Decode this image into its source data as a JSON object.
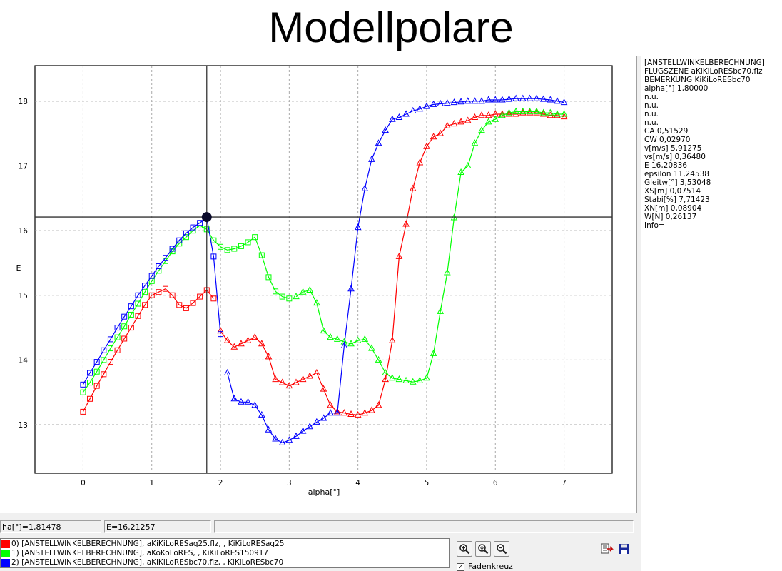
{
  "title": "Modellpolare",
  "info_panel": {
    "lines": [
      "[ANSTELLWINKELBERECHNUNG]",
      "FLUGSZENE aKiKiLoRESbc70.flz",
      "BEMERKUNG KiKiLoRESbc70",
      "alpha[°] 1,80000",
      "n.u.",
      "n.u.",
      "n.u.",
      "n.u.",
      "CA 0,51529",
      "CW 0,02970",
      "v[m/s] 5,91275",
      "vs[m/s] 0,36480",
      "E 16,20836",
      "epsilon 11,24538",
      "Gleitw[°] 3,53048",
      "XS[m] 0,07514",
      "Stabi[%] 7,71423",
      "XN[m] 0,08904",
      "W[N] 0,26137",
      "Info="
    ]
  },
  "status": {
    "alpha_readout": "ha[°]=1,81478",
    "e_readout": "E=16,21257"
  },
  "legend": [
    {
      "label": "0) [ANSTELLWINKELBERECHNUNG], aKiKiLoRESaq25.flz, , KiKiLoRESaq25",
      "color": "#ff0000"
    },
    {
      "label": "1) [ANSTELLWINKELBERECHNUNG], aKoKoLoRES, , KiKiLoRES150917",
      "color": "#00ff00"
    },
    {
      "label": "2) [ANSTELLWINKELBERECHNUNG], aKiKiLoRESbc70.flz, , KiKiLoRESbc70",
      "color": "#0000ff"
    }
  ],
  "toolbar": {
    "zoom_in_icon": "zoom-in-icon",
    "zoom_reset_icon": "zoom-reset-icon",
    "zoom_out_icon": "zoom-out-icon",
    "export_icon": "export-icon",
    "save_icon": "save-icon",
    "crosshair_checked": true,
    "crosshair_label": "Fadenkreuz"
  },
  "chart_data": {
    "type": "line",
    "xlabel": "alpha[°]",
    "ylabel": "E",
    "xlim": [
      -0.7,
      7.7
    ],
    "ylim": [
      12.25,
      18.55
    ],
    "xticks": [
      0,
      1,
      2,
      3,
      4,
      5,
      6,
      7
    ],
    "yticks": [
      13,
      14,
      15,
      16,
      17,
      18
    ],
    "grid": true,
    "crosshair": {
      "x": 1.8,
      "y": 16.21
    },
    "series": [
      {
        "name": "0) [ANSTELLWINKELBERECHNUNG], aKiKiLoRESaq25.flz, , KiKiLoRESaq25",
        "color": "#ff0000",
        "marker": "square",
        "x": [
          0,
          0.1,
          0.2,
          0.3,
          0.4,
          0.5,
          0.6,
          0.7,
          0.8,
          0.9,
          1.0,
          1.1,
          1.2,
          1.3,
          1.4,
          1.5,
          1.6,
          1.7,
          1.8,
          1.9
        ],
        "y": [
          13.2,
          13.4,
          13.6,
          13.78,
          13.97,
          14.15,
          14.33,
          14.5,
          14.68,
          14.85,
          15.0,
          15.05,
          15.1,
          15.0,
          14.85,
          14.8,
          14.88,
          14.98,
          15.08,
          14.95
        ]
      },
      {
        "name": "0) [ANSTELLWINKELBERECHNUNG], aKiKiLoRESaq25.flz, , KiKiLoRESaq25",
        "color": "#ff0000",
        "marker": "triangle",
        "x": [
          2.0,
          2.1,
          2.2,
          2.3,
          2.4,
          2.5,
          2.6,
          2.7,
          2.8,
          2.9,
          3.0,
          3.1,
          3.2,
          3.3,
          3.4,
          3.5,
          3.6,
          3.7,
          3.8,
          3.9,
          4.0,
          4.1,
          4.2,
          4.3,
          4.4,
          4.5,
          4.6,
          4.7,
          4.8,
          4.9,
          5.0,
          5.1,
          5.2,
          5.3,
          5.4,
          5.5,
          5.6,
          5.7,
          5.8,
          5.9,
          6.0,
          6.1,
          6.2,
          6.3,
          6.4,
          6.5,
          6.6,
          6.7,
          6.8,
          6.9,
          7.0
        ],
        "y": [
          14.45,
          14.3,
          14.2,
          14.25,
          14.3,
          14.35,
          14.25,
          14.05,
          13.7,
          13.65,
          13.6,
          13.65,
          13.7,
          13.75,
          13.8,
          13.55,
          13.3,
          13.2,
          13.18,
          13.16,
          13.15,
          13.18,
          13.22,
          13.3,
          13.7,
          14.3,
          15.6,
          16.1,
          16.65,
          17.05,
          17.3,
          17.45,
          17.5,
          17.62,
          17.65,
          17.68,
          17.7,
          17.75,
          17.78,
          17.78,
          17.8,
          17.8,
          17.8,
          17.8,
          17.82,
          17.82,
          17.82,
          17.8,
          17.78,
          17.78,
          17.76
        ]
      },
      {
        "name": "1) [ANSTELLWINKELBERECHNUNG], aKoKoLoRES, , KiKiLoRES150917",
        "color": "#00ff00",
        "marker": "square",
        "x": [
          0,
          0.1,
          0.2,
          0.3,
          0.4,
          0.5,
          0.6,
          0.7,
          0.8,
          0.9,
          1.0,
          1.1,
          1.2,
          1.3,
          1.4,
          1.5,
          1.6,
          1.7,
          1.8,
          1.9,
          2.0,
          2.1,
          2.2,
          2.3,
          2.4,
          2.5,
          2.6,
          2.7,
          2.8,
          2.9,
          3.0
        ],
        "y": [
          13.5,
          13.65,
          13.82,
          14.0,
          14.18,
          14.35,
          14.52,
          14.7,
          14.87,
          15.05,
          15.22,
          15.38,
          15.53,
          15.68,
          15.8,
          15.9,
          16.0,
          16.08,
          16.02,
          15.85,
          15.75,
          15.7,
          15.72,
          15.76,
          15.82,
          15.9,
          15.62,
          15.28,
          15.06,
          14.98,
          14.95
        ]
      },
      {
        "name": "1) [ANSTELLWINKELBERECHNUNG], aKoKoLoRES, , KiKiLoRES150917",
        "color": "#00ff00",
        "marker": "triangle",
        "x": [
          3.1,
          3.2,
          3.3,
          3.4,
          3.5,
          3.6,
          3.7,
          3.8,
          3.9,
          4.0,
          4.1,
          4.2,
          4.3,
          4.4,
          4.5,
          4.6,
          4.7,
          4.8,
          4.9,
          5.0,
          5.1,
          5.2,
          5.3,
          5.4,
          5.5,
          5.6,
          5.7,
          5.8,
          5.9,
          6.0,
          6.1,
          6.2,
          6.3,
          6.4,
          6.5,
          6.6,
          6.7,
          6.8,
          6.9,
          7.0
        ],
        "y": [
          14.98,
          15.05,
          15.08,
          14.88,
          14.45,
          14.35,
          14.32,
          14.28,
          14.25,
          14.3,
          14.32,
          14.18,
          14.0,
          13.8,
          13.72,
          13.7,
          13.68,
          13.66,
          13.68,
          13.72,
          14.1,
          14.75,
          15.35,
          16.2,
          16.9,
          17.0,
          17.35,
          17.55,
          17.68,
          17.72,
          17.78,
          17.82,
          17.84,
          17.84,
          17.84,
          17.84,
          17.82,
          17.82,
          17.8,
          17.8
        ]
      },
      {
        "name": "2) [ANSTELLWINKELBERECHNUNG], aKiKiLoRESbc70.flz, , KiKiLoRESbc70",
        "color": "#0000ff",
        "marker": "square",
        "x": [
          0,
          0.1,
          0.2,
          0.3,
          0.4,
          0.5,
          0.6,
          0.7,
          0.8,
          0.9,
          1.0,
          1.1,
          1.2,
          1.3,
          1.4,
          1.5,
          1.6,
          1.7,
          1.8,
          1.9,
          2.0
        ],
        "y": [
          13.62,
          13.8,
          13.97,
          14.15,
          14.32,
          14.5,
          14.67,
          14.83,
          15.0,
          15.15,
          15.3,
          15.45,
          15.58,
          15.72,
          15.85,
          15.96,
          16.05,
          16.12,
          16.2,
          15.6,
          14.4
        ]
      },
      {
        "name": "2) [ANSTELLWINKELBERECHNUNG], aKiKiLoRESbc70.flz, , KiKiLoRESbc70",
        "color": "#0000ff",
        "marker": "triangle",
        "x": [
          2.1,
          2.2,
          2.3,
          2.4,
          2.5,
          2.6,
          2.7,
          2.8,
          2.9,
          3.0,
          3.1,
          3.2,
          3.3,
          3.4,
          3.5,
          3.6,
          3.7,
          3.8,
          3.9,
          4.0,
          4.1,
          4.2,
          4.3,
          4.4,
          4.5,
          4.6,
          4.7,
          4.8,
          4.9,
          5.0,
          5.1,
          5.2,
          5.3,
          5.4,
          5.5,
          5.6,
          5.7,
          5.8,
          5.9,
          6.0,
          6.1,
          6.2,
          6.3,
          6.4,
          6.5,
          6.6,
          6.7,
          6.8,
          6.9,
          7.0
        ],
        "y": [
          13.8,
          13.4,
          13.35,
          13.35,
          13.3,
          13.15,
          12.92,
          12.78,
          12.72,
          12.76,
          12.82,
          12.9,
          12.97,
          13.04,
          13.1,
          13.18,
          13.18,
          14.22,
          15.1,
          16.05,
          16.65,
          17.1,
          17.35,
          17.55,
          17.72,
          17.75,
          17.8,
          17.85,
          17.88,
          17.92,
          17.95,
          17.96,
          17.97,
          17.98,
          17.99,
          18.0,
          18.0,
          18.0,
          18.02,
          18.02,
          18.02,
          18.03,
          18.04,
          18.04,
          18.04,
          18.04,
          18.03,
          18.02,
          18.0,
          17.98
        ]
      }
    ]
  }
}
